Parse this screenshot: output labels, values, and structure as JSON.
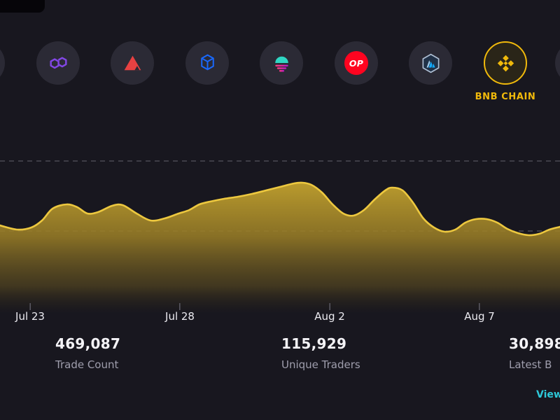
{
  "theme": {
    "bg": "#18171f",
    "chip": "#2b2a35",
    "accent": "#f0b90b",
    "link": "#2ec9d9"
  },
  "chains": {
    "selected": "bnb-chain",
    "selected_label": "BNB CHAIN",
    "optimism_badge": "OP",
    "items": [
      "partial-left",
      "polygon",
      "avalanche",
      "fantom",
      "sunset",
      "optimism",
      "arbitrum",
      "bnb-chain",
      "partial-right"
    ]
  },
  "chart_data": {
    "type": "area",
    "title": "",
    "xlabel": "",
    "ylabel": "",
    "x_tick_labels": [
      "Jul 23",
      "Jul 28",
      "Aug 2",
      "Aug 7"
    ],
    "x_tick_positions": [
      0.054,
      0.321,
      0.589,
      0.856
    ],
    "y_unit": "relative (unlabeled axis, 0-100)",
    "gridline_values": [
      100,
      50
    ],
    "grid_on": true,
    "legend": null,
    "line_color": "#edc83f",
    "fill_top_color": "#d9b532",
    "fill_bottom_color": "#3a3118",
    "grid_color": "#55545e",
    "points": [
      [
        0,
        54
      ],
      [
        0.031,
        51
      ],
      [
        0.056,
        52.5
      ],
      [
        0.075,
        57.5
      ],
      [
        0.094,
        66
      ],
      [
        0.119,
        69
      ],
      [
        0.138,
        67
      ],
      [
        0.156,
        62.5
      ],
      [
        0.175,
        63.5
      ],
      [
        0.2,
        68
      ],
      [
        0.219,
        68.5
      ],
      [
        0.244,
        62.5
      ],
      [
        0.269,
        57.5
      ],
      [
        0.294,
        59
      ],
      [
        0.319,
        62.5
      ],
      [
        0.338,
        65
      ],
      [
        0.356,
        69
      ],
      [
        0.375,
        71
      ],
      [
        0.4,
        73
      ],
      [
        0.425,
        74.5
      ],
      [
        0.45,
        76.5
      ],
      [
        0.475,
        79
      ],
      [
        0.5,
        81.5
      ],
      [
        0.525,
        84
      ],
      [
        0.54,
        84.5
      ],
      [
        0.556,
        83
      ],
      [
        0.575,
        77.5
      ],
      [
        0.594,
        69
      ],
      [
        0.613,
        62.5
      ],
      [
        0.631,
        61
      ],
      [
        0.65,
        65
      ],
      [
        0.669,
        72.5
      ],
      [
        0.688,
        79
      ],
      [
        0.7,
        81
      ],
      [
        0.719,
        79
      ],
      [
        0.738,
        70
      ],
      [
        0.756,
        59
      ],
      [
        0.775,
        52.5
      ],
      [
        0.794,
        49.5
      ],
      [
        0.813,
        51
      ],
      [
        0.831,
        56
      ],
      [
        0.85,
        58.5
      ],
      [
        0.869,
        58.5
      ],
      [
        0.888,
        56
      ],
      [
        0.906,
        51.5
      ],
      [
        0.925,
        48.5
      ],
      [
        0.944,
        47
      ],
      [
        0.963,
        48
      ],
      [
        0.981,
        51
      ],
      [
        1,
        53
      ]
    ]
  },
  "stats": [
    {
      "value": "469,087",
      "label": "Trade Count"
    },
    {
      "value": "115,929",
      "label": "Unique Traders"
    },
    {
      "value": "30,898",
      "label": "Latest B"
    }
  ],
  "footer": {
    "link_label": "View"
  }
}
